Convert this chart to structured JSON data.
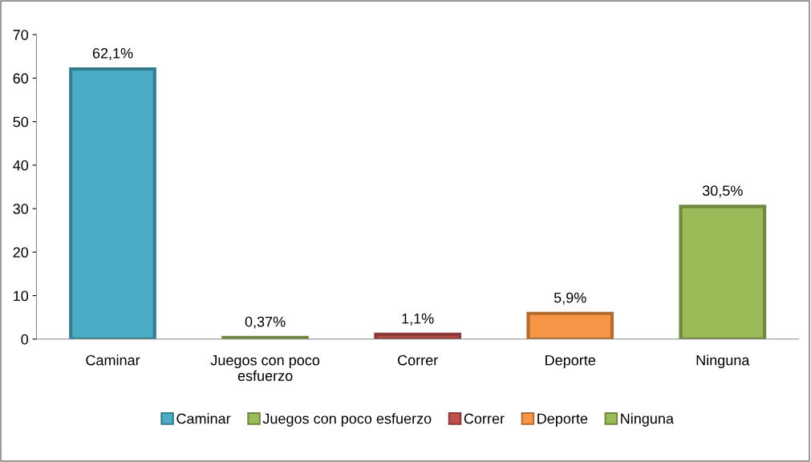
{
  "chart_data": {
    "type": "bar",
    "categories": [
      "Caminar",
      "Juegos con poco esfuerzo",
      "Correr",
      "Deporte",
      "Ninguna"
    ],
    "series": [
      {
        "name": "Caminar",
        "color": "#4bacc6",
        "values": [
          62.1,
          null,
          null,
          null,
          null
        ],
        "value_labels": [
          "62,1%",
          null,
          null,
          null,
          null
        ]
      },
      {
        "name": "Juegos con poco esfuerzo",
        "color": "#9bbb59",
        "values": [
          null,
          0.37,
          null,
          null,
          null
        ],
        "value_labels": [
          null,
          "0,37%",
          null,
          null,
          null
        ]
      },
      {
        "name": "Correr",
        "color": "#c0504d",
        "values": [
          null,
          null,
          1.1,
          null,
          null
        ],
        "value_labels": [
          null,
          null,
          "1,1%",
          null,
          null
        ]
      },
      {
        "name": "Deporte",
        "color": "#f79646",
        "values": [
          null,
          null,
          null,
          5.9,
          null
        ],
        "value_labels": [
          null,
          null,
          null,
          "5,9%",
          null
        ]
      },
      {
        "name": "Ninguna",
        "color": "#9bbb59",
        "values": [
          null,
          null,
          null,
          null,
          30.5
        ],
        "value_labels": [
          null,
          null,
          null,
          null,
          "30,5%"
        ]
      }
    ],
    "ylim": [
      0,
      70
    ],
    "yticks": [
      0,
      10,
      20,
      30,
      40,
      50,
      60,
      70
    ],
    "grid": false,
    "legend": "bottom"
  }
}
